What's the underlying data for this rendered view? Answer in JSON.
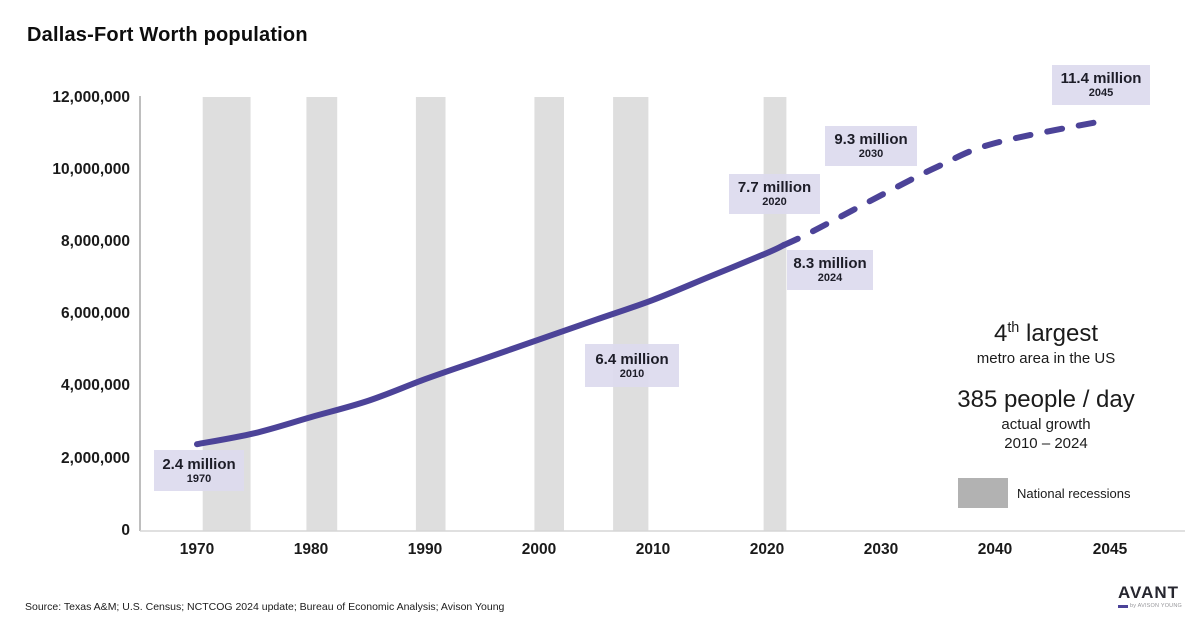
{
  "title": "Dallas-Fort Worth population",
  "chart_data": {
    "type": "line",
    "title": "Dallas-Fort Worth population",
    "xlabel": "",
    "ylabel": "",
    "ylim": [
      0,
      12000000
    ],
    "grid": false,
    "y_ticks": [
      {
        "value": 0,
        "label": "0"
      },
      {
        "value": 2000000,
        "label": "2,000,000"
      },
      {
        "value": 4000000,
        "label": "4,000,000"
      },
      {
        "value": 6000000,
        "label": "6,000,000"
      },
      {
        "value": 8000000,
        "label": "8,000,000"
      },
      {
        "value": 10000000,
        "label": "10,000,000"
      },
      {
        "value": 12000000,
        "label": "12,000,000"
      }
    ],
    "x_ticks": [
      {
        "year": 1970,
        "label": "1970"
      },
      {
        "year": 1980,
        "label": "1980"
      },
      {
        "year": 1990,
        "label": "1990"
      },
      {
        "year": 2000,
        "label": "2000"
      },
      {
        "year": 2010,
        "label": "2010"
      },
      {
        "year": 2020,
        "label": "2020"
      },
      {
        "year": 2030,
        "label": "2030"
      },
      {
        "year": 2040,
        "label": "2040"
      },
      {
        "year": 2045,
        "label": "2045"
      }
    ],
    "series": [
      {
        "name": "actual",
        "style": "solid",
        "points": [
          {
            "year": 1970,
            "value_millions": 2.4
          },
          {
            "year": 1975,
            "value_millions": 2.7
          },
          {
            "year": 1980,
            "value_millions": 3.15
          },
          {
            "year": 1985,
            "value_millions": 3.6
          },
          {
            "year": 1990,
            "value_millions": 4.2
          },
          {
            "year": 1995,
            "value_millions": 4.75
          },
          {
            "year": 2000,
            "value_millions": 5.3
          },
          {
            "year": 2005,
            "value_millions": 5.85
          },
          {
            "year": 2010,
            "value_millions": 6.4
          },
          {
            "year": 2015,
            "value_millions": 7.05
          },
          {
            "year": 2020,
            "value_millions": 7.7
          },
          {
            "year": 2024,
            "value_millions": 8.3
          }
        ]
      },
      {
        "name": "projected",
        "style": "dashed",
        "points": [
          {
            "year": 2024,
            "value_millions": 8.3
          },
          {
            "year": 2030,
            "value_millions": 9.3
          },
          {
            "year": 2035,
            "value_millions": 10.1
          },
          {
            "year": 2040,
            "value_millions": 10.75
          },
          {
            "year": 2045,
            "value_millions": 11.4
          }
        ]
      }
    ],
    "annotations": [
      {
        "value": "2.4 million",
        "year": "1970"
      },
      {
        "value": "6.4 million",
        "year": "2010"
      },
      {
        "value": "7.7 million",
        "year": "2020"
      },
      {
        "value": "8.3 million",
        "year": "2024"
      },
      {
        "value": "9.3 million",
        "year": "2030"
      },
      {
        "value": "11.4 million",
        "year": "2045"
      }
    ],
    "recessions": {
      "label": "National recessions",
      "periods": [
        [
          1970.5,
          1974.7
        ],
        [
          1979.6,
          1982.3
        ],
        [
          1989.2,
          1991.8
        ],
        [
          1999.6,
          2002.2
        ],
        [
          2006.5,
          2009.6
        ],
        [
          2019.7,
          2021.7
        ]
      ]
    },
    "colors": {
      "line": "#4c4398",
      "recession_band": "#dedede",
      "annotation_bg": "#dcdaee",
      "legend_swatch": "#b2b2b2"
    }
  },
  "stats": {
    "rank_num": "4",
    "rank_sup": "th",
    "rank_rest": " largest",
    "rank_sub": "metro area in the US",
    "growth": "385 people / day",
    "growth_sub1": "actual growth",
    "growth_sub2": "2010 – 2024"
  },
  "source": "Source: Texas A&M; U.S. Census; NCTCOG 2024 update; Bureau of Economic Analysis; Avison Young",
  "logo": {
    "name": "AVANT",
    "byline": "by AVISON YOUNG"
  }
}
